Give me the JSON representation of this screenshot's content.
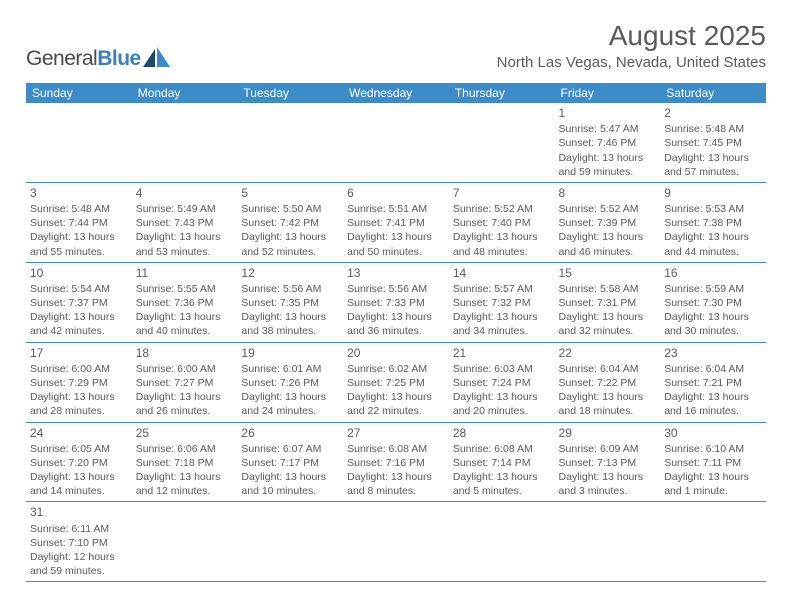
{
  "logo": {
    "text1": "General",
    "text2": "Blue"
  },
  "title": "August 2025",
  "location": "North Las Vegas, Nevada, United States",
  "colors": {
    "header_bg": "#3d8cc7",
    "header_fg": "#ffffff",
    "border": "#3d8cc7",
    "text": "#5a5a5a",
    "logo_blue": "#3d7fba",
    "logo_dark": "#1a4a6e"
  },
  "day_headers": [
    "Sunday",
    "Monday",
    "Tuesday",
    "Wednesday",
    "Thursday",
    "Friday",
    "Saturday"
  ],
  "weeks": [
    [
      null,
      null,
      null,
      null,
      null,
      {
        "n": "1",
        "sr": "Sunrise: 5:47 AM",
        "ss": "Sunset: 7:46 PM",
        "d1": "Daylight: 13 hours",
        "d2": "and 59 minutes."
      },
      {
        "n": "2",
        "sr": "Sunrise: 5:48 AM",
        "ss": "Sunset: 7:45 PM",
        "d1": "Daylight: 13 hours",
        "d2": "and 57 minutes."
      }
    ],
    [
      {
        "n": "3",
        "sr": "Sunrise: 5:48 AM",
        "ss": "Sunset: 7:44 PM",
        "d1": "Daylight: 13 hours",
        "d2": "and 55 minutes."
      },
      {
        "n": "4",
        "sr": "Sunrise: 5:49 AM",
        "ss": "Sunset: 7:43 PM",
        "d1": "Daylight: 13 hours",
        "d2": "and 53 minutes."
      },
      {
        "n": "5",
        "sr": "Sunrise: 5:50 AM",
        "ss": "Sunset: 7:42 PM",
        "d1": "Daylight: 13 hours",
        "d2": "and 52 minutes."
      },
      {
        "n": "6",
        "sr": "Sunrise: 5:51 AM",
        "ss": "Sunset: 7:41 PM",
        "d1": "Daylight: 13 hours",
        "d2": "and 50 minutes."
      },
      {
        "n": "7",
        "sr": "Sunrise: 5:52 AM",
        "ss": "Sunset: 7:40 PM",
        "d1": "Daylight: 13 hours",
        "d2": "and 48 minutes."
      },
      {
        "n": "8",
        "sr": "Sunrise: 5:52 AM",
        "ss": "Sunset: 7:39 PM",
        "d1": "Daylight: 13 hours",
        "d2": "and 46 minutes."
      },
      {
        "n": "9",
        "sr": "Sunrise: 5:53 AM",
        "ss": "Sunset: 7:38 PM",
        "d1": "Daylight: 13 hours",
        "d2": "and 44 minutes."
      }
    ],
    [
      {
        "n": "10",
        "sr": "Sunrise: 5:54 AM",
        "ss": "Sunset: 7:37 PM",
        "d1": "Daylight: 13 hours",
        "d2": "and 42 minutes."
      },
      {
        "n": "11",
        "sr": "Sunrise: 5:55 AM",
        "ss": "Sunset: 7:36 PM",
        "d1": "Daylight: 13 hours",
        "d2": "and 40 minutes."
      },
      {
        "n": "12",
        "sr": "Sunrise: 5:56 AM",
        "ss": "Sunset: 7:35 PM",
        "d1": "Daylight: 13 hours",
        "d2": "and 38 minutes."
      },
      {
        "n": "13",
        "sr": "Sunrise: 5:56 AM",
        "ss": "Sunset: 7:33 PM",
        "d1": "Daylight: 13 hours",
        "d2": "and 36 minutes."
      },
      {
        "n": "14",
        "sr": "Sunrise: 5:57 AM",
        "ss": "Sunset: 7:32 PM",
        "d1": "Daylight: 13 hours",
        "d2": "and 34 minutes."
      },
      {
        "n": "15",
        "sr": "Sunrise: 5:58 AM",
        "ss": "Sunset: 7:31 PM",
        "d1": "Daylight: 13 hours",
        "d2": "and 32 minutes."
      },
      {
        "n": "16",
        "sr": "Sunrise: 5:59 AM",
        "ss": "Sunset: 7:30 PM",
        "d1": "Daylight: 13 hours",
        "d2": "and 30 minutes."
      }
    ],
    [
      {
        "n": "17",
        "sr": "Sunrise: 6:00 AM",
        "ss": "Sunset: 7:29 PM",
        "d1": "Daylight: 13 hours",
        "d2": "and 28 minutes."
      },
      {
        "n": "18",
        "sr": "Sunrise: 6:00 AM",
        "ss": "Sunset: 7:27 PM",
        "d1": "Daylight: 13 hours",
        "d2": "and 26 minutes."
      },
      {
        "n": "19",
        "sr": "Sunrise: 6:01 AM",
        "ss": "Sunset: 7:26 PM",
        "d1": "Daylight: 13 hours",
        "d2": "and 24 minutes."
      },
      {
        "n": "20",
        "sr": "Sunrise: 6:02 AM",
        "ss": "Sunset: 7:25 PM",
        "d1": "Daylight: 13 hours",
        "d2": "and 22 minutes."
      },
      {
        "n": "21",
        "sr": "Sunrise: 6:03 AM",
        "ss": "Sunset: 7:24 PM",
        "d1": "Daylight: 13 hours",
        "d2": "and 20 minutes."
      },
      {
        "n": "22",
        "sr": "Sunrise: 6:04 AM",
        "ss": "Sunset: 7:22 PM",
        "d1": "Daylight: 13 hours",
        "d2": "and 18 minutes."
      },
      {
        "n": "23",
        "sr": "Sunrise: 6:04 AM",
        "ss": "Sunset: 7:21 PM",
        "d1": "Daylight: 13 hours",
        "d2": "and 16 minutes."
      }
    ],
    [
      {
        "n": "24",
        "sr": "Sunrise: 6:05 AM",
        "ss": "Sunset: 7:20 PM",
        "d1": "Daylight: 13 hours",
        "d2": "and 14 minutes."
      },
      {
        "n": "25",
        "sr": "Sunrise: 6:06 AM",
        "ss": "Sunset: 7:18 PM",
        "d1": "Daylight: 13 hours",
        "d2": "and 12 minutes."
      },
      {
        "n": "26",
        "sr": "Sunrise: 6:07 AM",
        "ss": "Sunset: 7:17 PM",
        "d1": "Daylight: 13 hours",
        "d2": "and 10 minutes."
      },
      {
        "n": "27",
        "sr": "Sunrise: 6:08 AM",
        "ss": "Sunset: 7:16 PM",
        "d1": "Daylight: 13 hours",
        "d2": "and 8 minutes."
      },
      {
        "n": "28",
        "sr": "Sunrise: 6:08 AM",
        "ss": "Sunset: 7:14 PM",
        "d1": "Daylight: 13 hours",
        "d2": "and 5 minutes."
      },
      {
        "n": "29",
        "sr": "Sunrise: 6:09 AM",
        "ss": "Sunset: 7:13 PM",
        "d1": "Daylight: 13 hours",
        "d2": "and 3 minutes."
      },
      {
        "n": "30",
        "sr": "Sunrise: 6:10 AM",
        "ss": "Sunset: 7:11 PM",
        "d1": "Daylight: 13 hours",
        "d2": "and 1 minute."
      }
    ],
    [
      {
        "n": "31",
        "sr": "Sunrise: 6:11 AM",
        "ss": "Sunset: 7:10 PM",
        "d1": "Daylight: 12 hours",
        "d2": "and 59 minutes."
      },
      null,
      null,
      null,
      null,
      null,
      null
    ]
  ]
}
